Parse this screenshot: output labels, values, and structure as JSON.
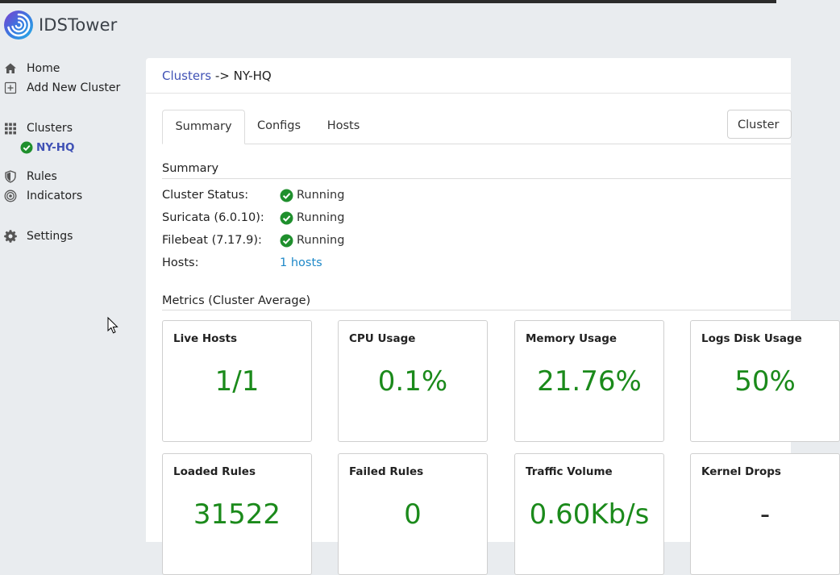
{
  "app": {
    "name": "IDSTower"
  },
  "sidebar": {
    "items": [
      {
        "label": "Home",
        "icon": "home-icon"
      },
      {
        "label": "Add New Cluster",
        "icon": "plus-square-icon"
      },
      {
        "label": "Clusters",
        "icon": "grid-icon"
      },
      {
        "label": "NY-HQ",
        "icon": "check-circle-icon"
      },
      {
        "label": "Rules",
        "icon": "shield-icon"
      },
      {
        "label": "Indicators",
        "icon": "target-icon"
      },
      {
        "label": "Settings",
        "icon": "gear-icon"
      }
    ]
  },
  "breadcrumb": {
    "parent": "Clusters",
    "separator": "->",
    "current": "NY-HQ"
  },
  "tabs": [
    {
      "label": "Summary"
    },
    {
      "label": "Configs"
    },
    {
      "label": "Hosts"
    }
  ],
  "cluster_button": {
    "label": "Cluster"
  },
  "summary": {
    "title": "Summary",
    "rows": [
      {
        "label": "Cluster Status:",
        "value": "Running"
      },
      {
        "label": "Suricata (6.0.10):",
        "value": "Running"
      },
      {
        "label": "Filebeat (7.17.9):",
        "value": "Running"
      },
      {
        "label": "Hosts:",
        "value": "1 hosts"
      }
    ]
  },
  "metrics": {
    "title": "Metrics (Cluster Average)",
    "cards": [
      {
        "title": "Live Hosts",
        "value": "1/1"
      },
      {
        "title": "CPU Usage",
        "value": "0.1%"
      },
      {
        "title": "Memory Usage",
        "value": "21.76%"
      },
      {
        "title": "Logs Disk Usage",
        "value": "50%"
      },
      {
        "title": "Loaded Rules",
        "value": "31522"
      },
      {
        "title": "Failed Rules",
        "value": "0"
      },
      {
        "title": "Traffic Volume",
        "value": "0.60Kb/s"
      },
      {
        "title": "Kernel Drops",
        "value": "-"
      }
    ]
  },
  "colors": {
    "accent": "#3f51b5",
    "link": "#1e88c8",
    "success": "#1b8a1b"
  }
}
